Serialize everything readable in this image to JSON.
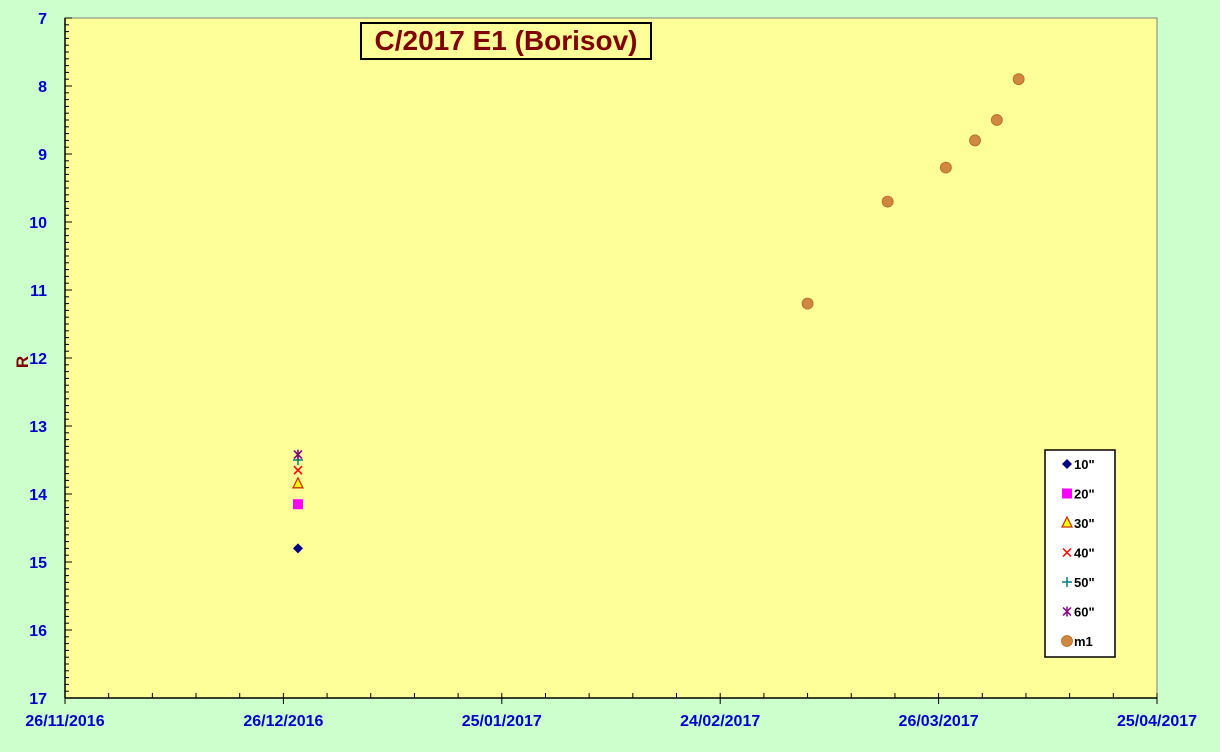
{
  "chart_data": {
    "type": "scatter",
    "title": "C/2017 E1 (Borisov)",
    "xlabel": "",
    "ylabel": "R",
    "x_axis": {
      "type": "date",
      "min": "2016-11-26",
      "max": "2017-04-25",
      "tick_labels": [
        "26/11/2016",
        "26/12/2016",
        "25/01/2017",
        "24/02/2017",
        "26/03/2017",
        "25/04/2017"
      ],
      "tick_dates": [
        "2016-11-26",
        "2016-12-26",
        "2017-01-25",
        "2017-02-24",
        "2017-03-26",
        "2017-04-25"
      ]
    },
    "y_axis": {
      "min": 7,
      "max": 17,
      "inverted": true,
      "ticks": [
        7,
        8,
        9,
        10,
        11,
        12,
        13,
        14,
        15,
        16,
        17
      ]
    },
    "grid": false,
    "legend_position": "bottom-right",
    "series": [
      {
        "name": "10\"",
        "marker": "diamond",
        "color": "#000080",
        "points": [
          {
            "x": "2016-12-28",
            "y": 14.8
          }
        ]
      },
      {
        "name": "20\"",
        "marker": "square",
        "color": "#ff00ff",
        "points": [
          {
            "x": "2016-12-28",
            "y": 14.15
          }
        ]
      },
      {
        "name": "30\"",
        "marker": "triangle",
        "color": "#ffff00",
        "stroke": "#cc3300",
        "points": [
          {
            "x": "2016-12-28",
            "y": 13.85
          }
        ]
      },
      {
        "name": "40\"",
        "marker": "x",
        "color": "#ff0000",
        "points": [
          {
            "x": "2016-12-28",
            "y": 13.65
          }
        ]
      },
      {
        "name": "50\"",
        "marker": "plus",
        "color": "#008080",
        "points": [
          {
            "x": "2016-12-28",
            "y": 13.5
          }
        ]
      },
      {
        "name": "60\"",
        "marker": "star",
        "color": "#800080",
        "points": [
          {
            "x": "2016-12-28",
            "y": 13.42
          }
        ]
      },
      {
        "name": "m1",
        "marker": "circle",
        "color": "#d08840",
        "points": [
          {
            "x": "2017-03-08",
            "y": 11.2
          },
          {
            "x": "2017-03-19",
            "y": 9.7
          },
          {
            "x": "2017-03-27",
            "y": 9.2
          },
          {
            "x": "2017-03-31",
            "y": 8.8
          },
          {
            "x": "2017-04-03",
            "y": 8.5
          },
          {
            "x": "2017-04-06",
            "y": 7.9
          }
        ]
      }
    ]
  }
}
